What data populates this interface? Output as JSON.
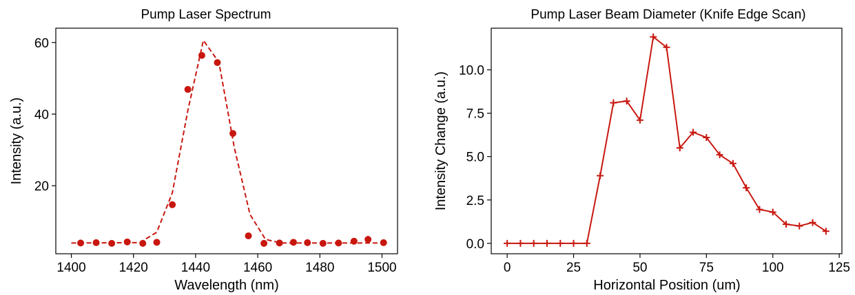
{
  "colors": {
    "series": "#c8170f",
    "axes": "#000000",
    "background": "#ffffff"
  },
  "chart_data": [
    {
      "type": "scatter",
      "title": "Pump Laser Spectrum",
      "xlabel": "Wavelength (nm)",
      "ylabel": "Intensity (a.u.)",
      "xlim": [
        1395,
        1505
      ],
      "ylim": [
        1,
        64
      ],
      "xticks": [
        1400,
        1420,
        1440,
        1460,
        1480,
        1500
      ],
      "yticks": [
        20,
        40,
        60
      ],
      "grid": false,
      "series": [
        {
          "style": "markers",
          "x": [
            1403,
            1408,
            1413,
            1418,
            1423,
            1427.5,
            1432.5,
            1437.5,
            1442,
            1447,
            1452,
            1457,
            1462,
            1467,
            1471.5,
            1476,
            1481,
            1486,
            1491,
            1495.5,
            1500.5
          ],
          "y": [
            4.0,
            4.1,
            3.9,
            4.3,
            3.9,
            4.2,
            14.7,
            46.9,
            56.4,
            54.4,
            34.6,
            6.0,
            3.9,
            4.0,
            4.2,
            4.1,
            3.9,
            4.0,
            4.5,
            5.0,
            4.1
          ]
        },
        {
          "style": "dashed-line",
          "x": [
            1400,
            1422,
            1427.5,
            1432.5,
            1437.5,
            1442.5,
            1447.5,
            1452.5,
            1457.5,
            1462.5,
            1467.5,
            1500
          ],
          "y": [
            4.0,
            4.1,
            7.0,
            18.0,
            41.0,
            60.6,
            54.5,
            30.5,
            12.0,
            5.0,
            4.0,
            4.0
          ]
        }
      ]
    },
    {
      "type": "line",
      "title": "Pump Laser Beam Diameter (Knife Edge Scan)",
      "xlabel": "Horizontal Position (um)",
      "ylabel": "Intensity Change (a.u.)",
      "xlim": [
        -6,
        126
      ],
      "ylim": [
        -0.6,
        12.4
      ],
      "xticks": [
        0,
        25,
        50,
        75,
        100,
        125
      ],
      "yticks": [
        0.0,
        2.5,
        5.0,
        7.5,
        10.0
      ],
      "grid": false,
      "series": [
        {
          "style": "line-plus-markers",
          "x": [
            0,
            5,
            10,
            15,
            20,
            25,
            30,
            35,
            40,
            45,
            50,
            55,
            60,
            65,
            70,
            75,
            80,
            85,
            90,
            95,
            100,
            105,
            110,
            115,
            120
          ],
          "y": [
            0.0,
            0.0,
            0.0,
            0.0,
            0.0,
            0.0,
            0.0,
            3.9,
            8.1,
            8.2,
            7.1,
            11.9,
            11.3,
            5.5,
            6.4,
            6.1,
            5.1,
            4.6,
            3.2,
            1.95,
            1.8,
            1.1,
            1.0,
            1.2,
            0.7
          ]
        }
      ]
    }
  ]
}
